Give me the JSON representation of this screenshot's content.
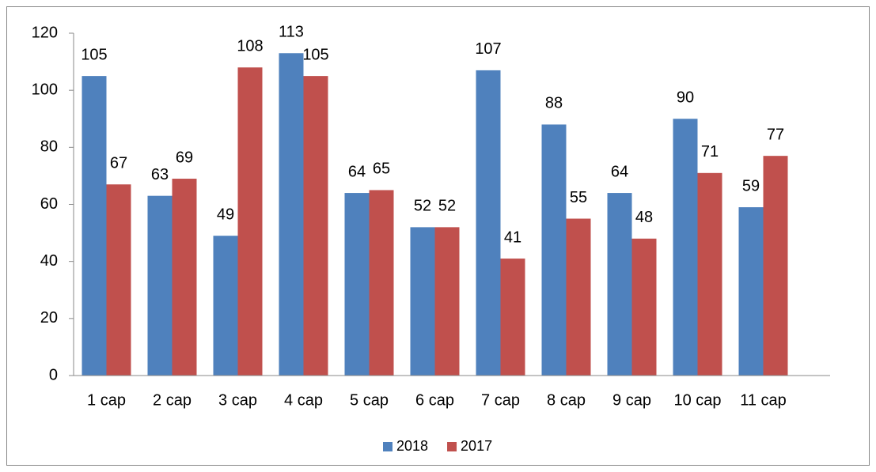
{
  "chart_data": {
    "type": "bar",
    "categories": [
      "1 cap",
      "2 cap",
      "3 cap",
      "4 cap",
      "5 cap",
      "6 cap",
      "7 cap",
      "8 cap",
      "9 cap",
      "10 cap",
      "11 cap",
      null
    ],
    "series": [
      {
        "name": "2018",
        "color": "#4f81bd",
        "values": [
          105,
          63,
          49,
          113,
          64,
          52,
          107,
          88,
          64,
          90,
          59,
          null
        ]
      },
      {
        "name": "2017",
        "color": "#c0504d",
        "values": [
          67,
          69,
          108,
          105,
          65,
          52,
          41,
          55,
          48,
          71,
          77,
          null
        ]
      }
    ],
    "ylim": [
      0,
      120
    ],
    "yticks": [
      0,
      20,
      40,
      60,
      80,
      100,
      120
    ],
    "grid": false,
    "legend": "bottom"
  }
}
